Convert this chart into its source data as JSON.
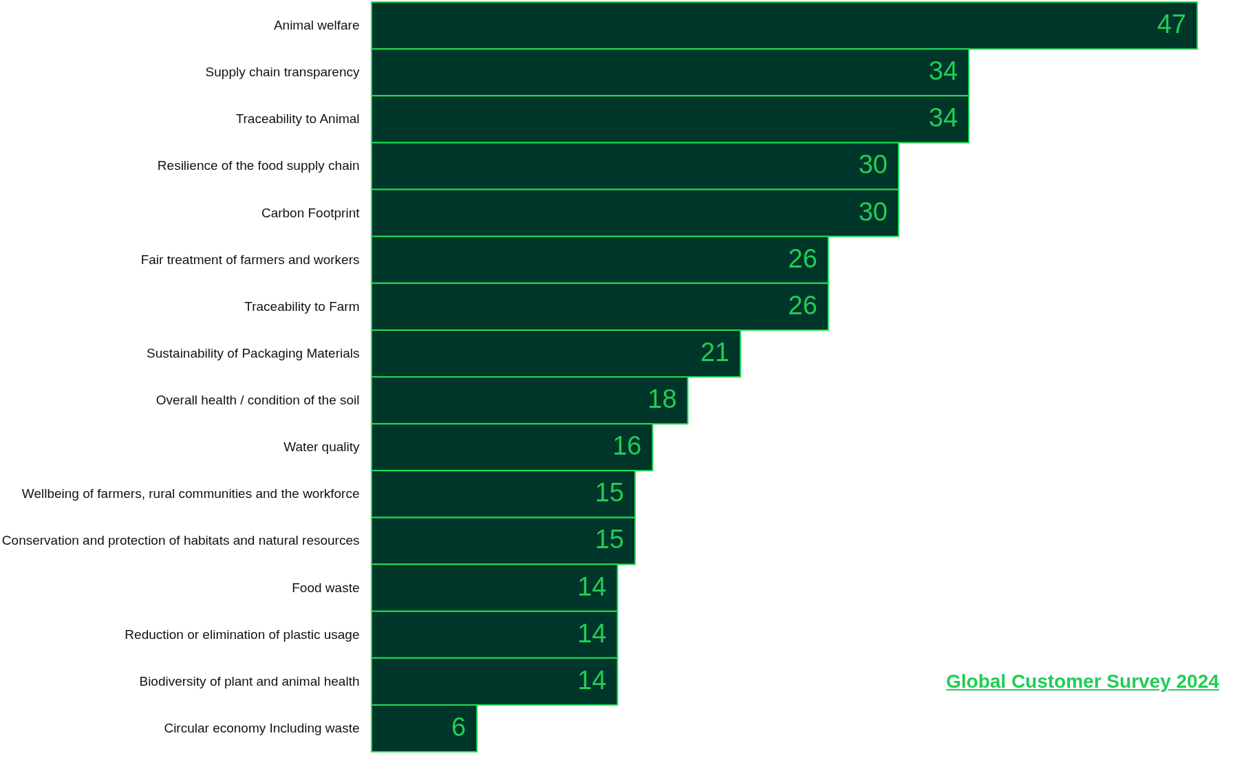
{
  "chart_data": {
    "type": "bar",
    "orientation": "horizontal",
    "data_labels": true,
    "color": "#003629",
    "categories": [
      "Animal welfare",
      "Supply chain transparency",
      "Traceability to Animal",
      "Resilience of the food supply chain",
      "Carbon Footprint",
      "Fair treatment of farmers and workers",
      "Traceability to Farm",
      "Sustainability of Packaging Materials",
      "Overall health / condition of the soil",
      "Water quality",
      "Wellbeing of farmers, rural communities and the workforce",
      "Conservation and protection of habitats and natural resources",
      "Food waste",
      "Reduction or elimination of plastic usage",
      "Biodiversity of plant and animal health",
      "Circular economy Including waste"
    ],
    "values": [
      47,
      34,
      34,
      30,
      30,
      26,
      26,
      21,
      18,
      16,
      15,
      15,
      14,
      14,
      14,
      6
    ],
    "annotations": [
      "Global Customer Survey 2024"
    ]
  }
}
